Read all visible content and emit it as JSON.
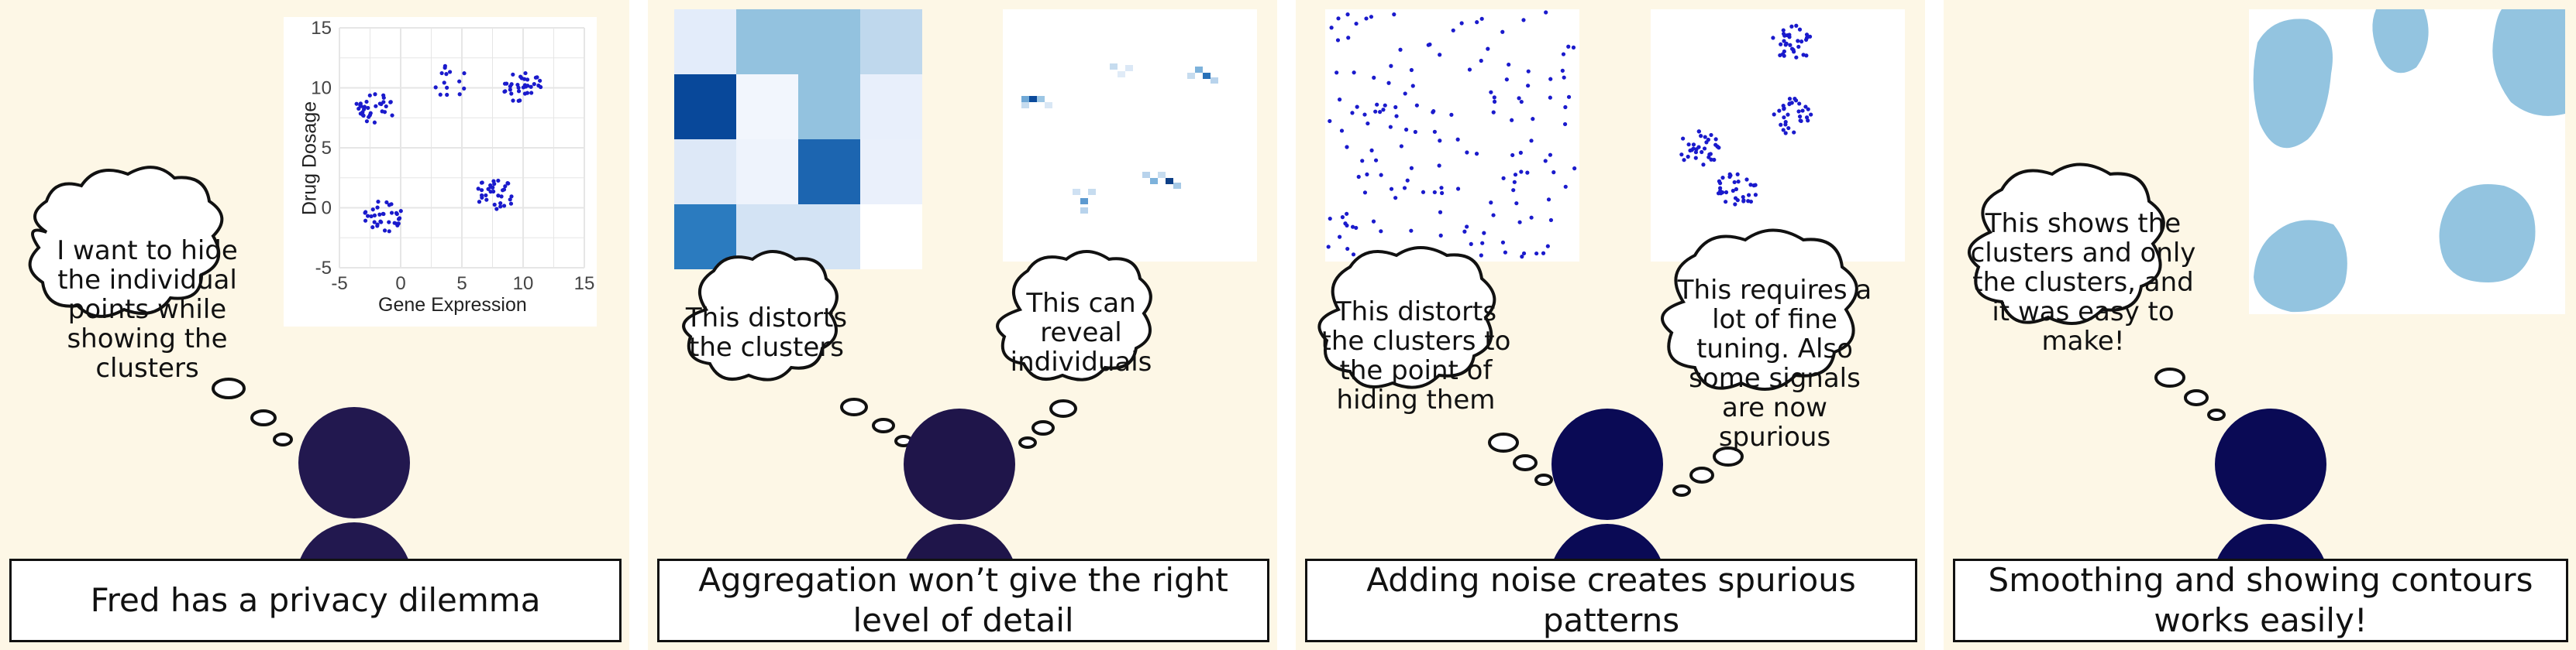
{
  "panels": [
    {
      "caption": "Fred has a privacy dilemma",
      "bubble": "I want to hide the individual points while showing the clusters",
      "chart_data": {
        "type": "scatter",
        "xlabel": "Gene Expression",
        "ylabel": "Drug Dosage",
        "xlim": [
          -5,
          15
        ],
        "ylim": [
          -5,
          15
        ],
        "x_ticks": [
          "-5",
          "0",
          "5",
          "10",
          "15"
        ],
        "y_ticks": [
          "15",
          "10",
          "5",
          "0",
          "-5"
        ],
        "grid": true,
        "point_color": "#1a1acc",
        "clusters": [
          {
            "cx": -2.2,
            "cy": 8.2
          },
          {
            "cx": 3.8,
            "cy": 10.5
          },
          {
            "cx": 10.0,
            "cy": 10.0
          },
          {
            "cx": -1.3,
            "cy": -0.7
          },
          {
            "cx": 7.8,
            "cy": 1.2
          }
        ]
      }
    },
    {
      "caption": "Aggregation won’t give the right level of detail",
      "bubble_left": "This distorts the clusters",
      "bubble_right": "This can reveal individuals"
    },
    {
      "caption": "Adding noise creates spurious patterns",
      "bubble_left": "This distorts the clusters to the point of hiding them",
      "bubble_right": "This requires a lot of fine tuning. Also some signals are now spurious"
    },
    {
      "caption": "Smoothing and showing contours works easily!",
      "bubble": "This shows the clusters and only the clusters, and it was easy to make!"
    }
  ],
  "colors": {
    "panel_bg": "#fdf7e6",
    "person_p1": "#22184f",
    "person_p2": "#1f154a",
    "person_p3": "#0a0a55",
    "person_p4": "#0a0a55",
    "contour_fill": "#93c4e0"
  }
}
